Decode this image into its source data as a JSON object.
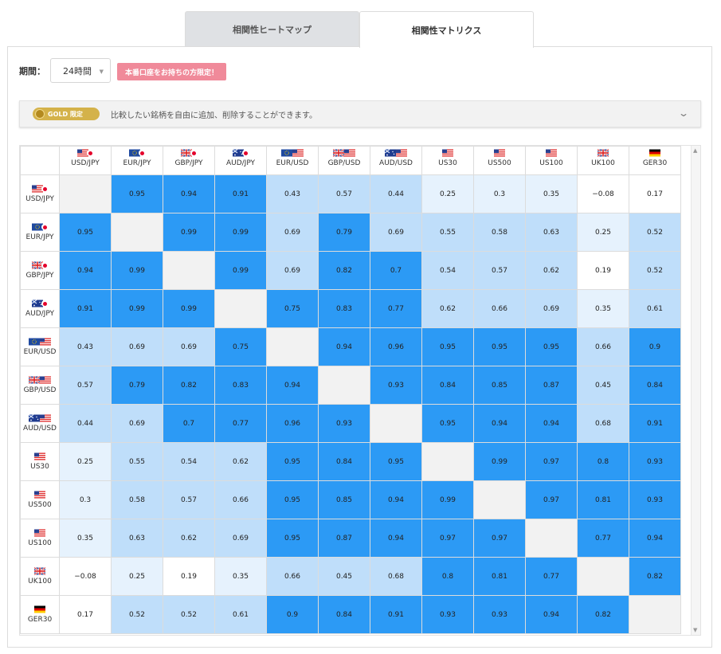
{
  "tabs": [
    {
      "label": "相関性ヒートマップ",
      "active": false
    },
    {
      "label": "相関性マトリクス",
      "active": true
    }
  ],
  "period": {
    "label": "期間：",
    "value": "24時間"
  },
  "limited_badge": "本番口座をお持ちの方限定！",
  "gold": {
    "badge": "GOLD 限定",
    "text": "比較したい銘柄を自由に追加、削除することができます。"
  },
  "matrix": {
    "symbols": [
      {
        "label": "USD/JPY",
        "flags": [
          "US",
          "JP"
        ]
      },
      {
        "label": "EUR/JPY",
        "flags": [
          "EU",
          "JP"
        ]
      },
      {
        "label": "GBP/JPY",
        "flags": [
          "GB",
          "JP"
        ]
      },
      {
        "label": "AUD/JPY",
        "flags": [
          "AU",
          "JP"
        ]
      },
      {
        "label": "EUR/USD",
        "flags": [
          "EU",
          "US"
        ]
      },
      {
        "label": "GBP/USD",
        "flags": [
          "GB",
          "US"
        ]
      },
      {
        "label": "AUD/USD",
        "flags": [
          "AU",
          "US"
        ]
      },
      {
        "label": "US30",
        "flags": [
          "US"
        ]
      },
      {
        "label": "US500",
        "flags": [
          "US"
        ]
      },
      {
        "label": "US100",
        "flags": [
          "US"
        ]
      },
      {
        "label": "UK100",
        "flags": [
          "GB"
        ]
      },
      {
        "label": "GER30",
        "flags": [
          "DE"
        ]
      }
    ],
    "values": [
      [
        null,
        "0.95",
        "0.94",
        "0.91",
        "0.43",
        "0.57",
        "0.44",
        "0.25",
        "0.3",
        "0.35",
        "−0.08",
        "0.17"
      ],
      [
        "0.95",
        null,
        "0.99",
        "0.99",
        "0.69",
        "0.79",
        "0.69",
        "0.55",
        "0.58",
        "0.63",
        "0.25",
        "0.52"
      ],
      [
        "0.94",
        "0.99",
        null,
        "0.99",
        "0.69",
        "0.82",
        "0.7",
        "0.54",
        "0.57",
        "0.62",
        "0.19",
        "0.52"
      ],
      [
        "0.91",
        "0.99",
        "0.99",
        null,
        "0.75",
        "0.83",
        "0.77",
        "0.62",
        "0.66",
        "0.69",
        "0.35",
        "0.61"
      ],
      [
        "0.43",
        "0.69",
        "0.69",
        "0.75",
        null,
        "0.94",
        "0.96",
        "0.95",
        "0.95",
        "0.95",
        "0.66",
        "0.9"
      ],
      [
        "0.57",
        "0.79",
        "0.82",
        "0.83",
        "0.94",
        null,
        "0.93",
        "0.84",
        "0.85",
        "0.87",
        "0.45",
        "0.84"
      ],
      [
        "0.44",
        "0.69",
        "0.7",
        "0.77",
        "0.96",
        "0.93",
        null,
        "0.95",
        "0.94",
        "0.94",
        "0.68",
        "0.91"
      ],
      [
        "0.25",
        "0.55",
        "0.54",
        "0.62",
        "0.95",
        "0.84",
        "0.95",
        null,
        "0.99",
        "0.97",
        "0.8",
        "0.93"
      ],
      [
        "0.3",
        "0.58",
        "0.57",
        "0.66",
        "0.95",
        "0.85",
        "0.94",
        "0.99",
        null,
        "0.97",
        "0.81",
        "0.93"
      ],
      [
        "0.35",
        "0.63",
        "0.62",
        "0.69",
        "0.95",
        "0.87",
        "0.94",
        "0.97",
        "0.97",
        null,
        "0.77",
        "0.94"
      ],
      [
        "−0.08",
        "0.25",
        "0.19",
        "0.35",
        "0.66",
        "0.45",
        "0.68",
        "0.8",
        "0.81",
        "0.77",
        null,
        "0.82"
      ],
      [
        "0.17",
        "0.52",
        "0.52",
        "0.61",
        "0.9",
        "0.84",
        "0.91",
        "0.93",
        "0.93",
        "0.94",
        "0.82",
        null
      ]
    ],
    "colors": {
      "level0": "#ffffff",
      "level1": "#e6f2fd",
      "level2": "#bfdefa",
      "level3": "#2c9af5",
      "diagonal": "#f2f2f2"
    }
  }
}
